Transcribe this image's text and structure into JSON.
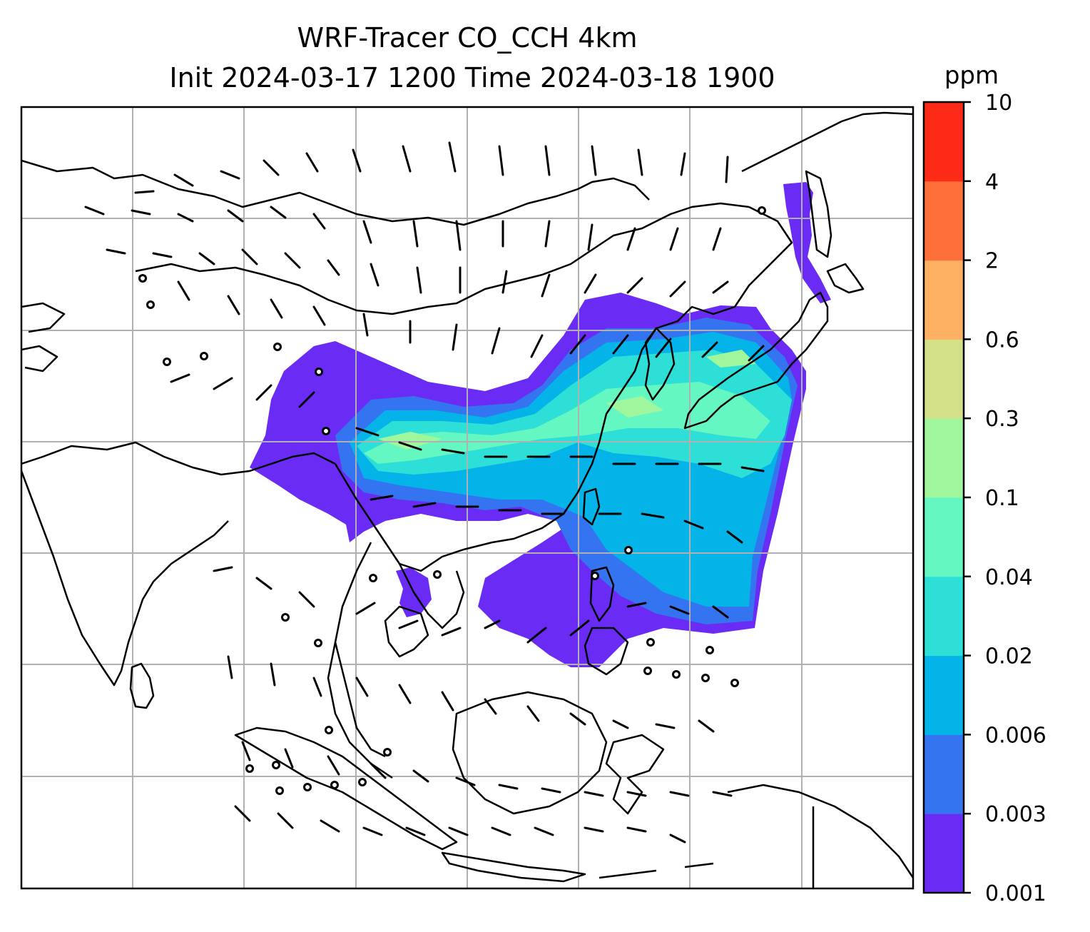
{
  "title": {
    "line1": "WRF-Tracer CO_CCH 4km",
    "line2": "Init 2024-03-17 1200 Time 2024-03-18 1900"
  },
  "colorbar": {
    "unit": "ppm",
    "levels": [
      "0.001",
      "0.003",
      "0.006",
      "0.02",
      "0.04",
      "0.1",
      "0.3",
      "0.6",
      "2",
      "4",
      "10"
    ],
    "colors": [
      "#6a2cf5",
      "#3574f0",
      "#04b4e8",
      "#2ddfd7",
      "#65f7c2",
      "#a0f69c",
      "#d3e087",
      "#fdb062",
      "#fe6f3a",
      "#fd2a17"
    ]
  },
  "map": {
    "gridlines": true,
    "gridline_color": "#b0b0b0",
    "coastline_color": "#000000",
    "barb_color": "#000000"
  }
}
